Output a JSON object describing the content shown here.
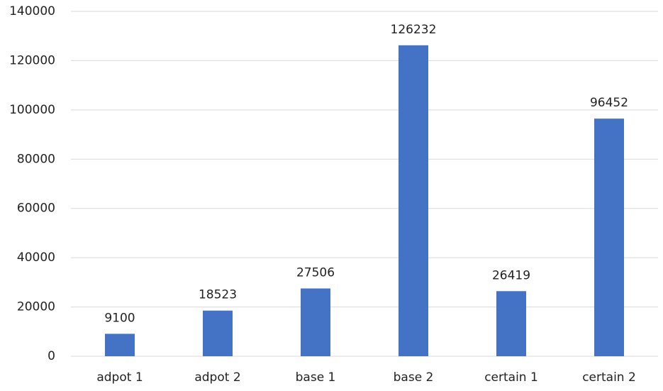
{
  "chart_data": {
    "type": "bar",
    "categories": [
      "adpot 1",
      "adpot 2",
      "base 1",
      "base 2",
      "certain 1",
      "certain 2"
    ],
    "values": [
      9100,
      18523,
      27506,
      126232,
      26419,
      96452
    ],
    "color": "#4472c4",
    "ylim": [
      0,
      140000
    ],
    "yticks": [
      0,
      20000,
      40000,
      60000,
      80000,
      100000,
      120000,
      140000
    ],
    "grid": true
  }
}
